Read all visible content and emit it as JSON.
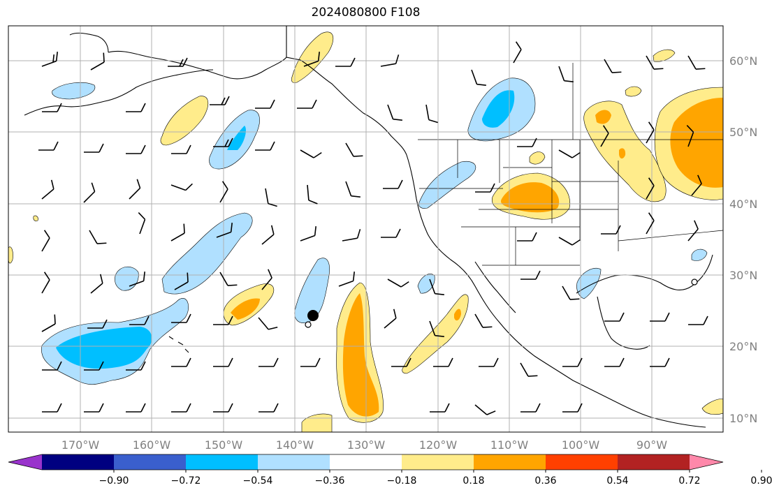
{
  "title": "2024080800 F108",
  "lat_labels": [
    "60°N",
    "50°N",
    "40°N",
    "30°N",
    "20°N",
    "10°N"
  ],
  "lon_labels": [
    "170°W",
    "160°W",
    "150°W",
    "140°W",
    "130°W",
    "120°W",
    "110°W",
    "100°W",
    "90°W"
  ],
  "colorbar": {
    "colors": [
      "#9933cc",
      "#000080",
      "#3a5fcd",
      "#00bfff",
      "#b0e0ff",
      "#ffffff",
      "#ffec8b",
      "#ffa500",
      "#ff4000",
      "#b22222",
      "#ff88aa"
    ],
    "tick_labels": [
      "−0.90",
      "−0.72",
      "−0.54",
      "−0.36",
      "−0.18",
      "0.18",
      "0.36",
      "0.54",
      "0.72",
      "0.90"
    ]
  },
  "colors": {
    "grid": "#b0b0b0",
    "coast": "#000000",
    "light_blue": "#b0e0ff",
    "mid_blue": "#00bfff",
    "light_yellow": "#ffec8b",
    "orange": "#ffa500"
  }
}
